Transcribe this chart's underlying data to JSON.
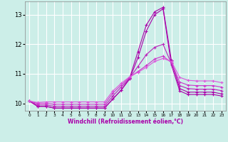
{
  "xlabel": "Windchill (Refroidissement éolien,°C)",
  "background_color": "#cceee8",
  "grid_color": "#ffffff",
  "line_color1": "#aa00aa",
  "line_color2": "#cc44cc",
  "marker": "+",
  "xlim": [
    -0.5,
    23.5
  ],
  "ylim": [
    9.75,
    13.45
  ],
  "yticks": [
    10,
    11,
    12,
    13
  ],
  "xticks": [
    0,
    1,
    2,
    3,
    4,
    5,
    6,
    7,
    8,
    9,
    10,
    11,
    12,
    13,
    14,
    15,
    16,
    17,
    18,
    19,
    20,
    21,
    22,
    23
  ],
  "lines": [
    [
      10.08,
      9.9,
      9.9,
      9.84,
      9.84,
      9.84,
      9.84,
      9.84,
      9.84,
      9.84,
      10.15,
      10.45,
      10.85,
      11.75,
      12.65,
      13.1,
      13.25,
      11.45,
      10.5,
      10.38,
      10.38,
      10.38,
      10.38,
      10.32
    ],
    [
      10.08,
      9.9,
      9.9,
      9.84,
      9.84,
      9.84,
      9.84,
      9.84,
      9.84,
      9.84,
      10.15,
      10.45,
      10.82,
      11.55,
      12.45,
      13.0,
      13.2,
      11.3,
      10.42,
      10.3,
      10.3,
      10.3,
      10.3,
      10.25
    ],
    [
      10.08,
      9.95,
      9.95,
      9.9,
      9.9,
      9.9,
      9.9,
      9.9,
      9.9,
      9.9,
      10.25,
      10.55,
      10.85,
      11.25,
      11.65,
      11.9,
      12.0,
      11.35,
      10.6,
      10.5,
      10.48,
      10.48,
      10.48,
      10.43
    ],
    [
      10.08,
      10.0,
      10.0,
      9.97,
      9.97,
      9.97,
      9.97,
      9.97,
      9.97,
      9.97,
      10.35,
      10.62,
      10.88,
      11.08,
      11.28,
      11.5,
      11.6,
      11.38,
      10.72,
      10.62,
      10.6,
      10.6,
      10.6,
      10.55
    ],
    [
      10.08,
      10.03,
      10.05,
      10.05,
      10.05,
      10.05,
      10.05,
      10.05,
      10.05,
      10.05,
      10.42,
      10.68,
      10.9,
      11.05,
      11.22,
      11.42,
      11.52,
      11.42,
      10.88,
      10.78,
      10.76,
      10.76,
      10.76,
      10.7
    ]
  ]
}
